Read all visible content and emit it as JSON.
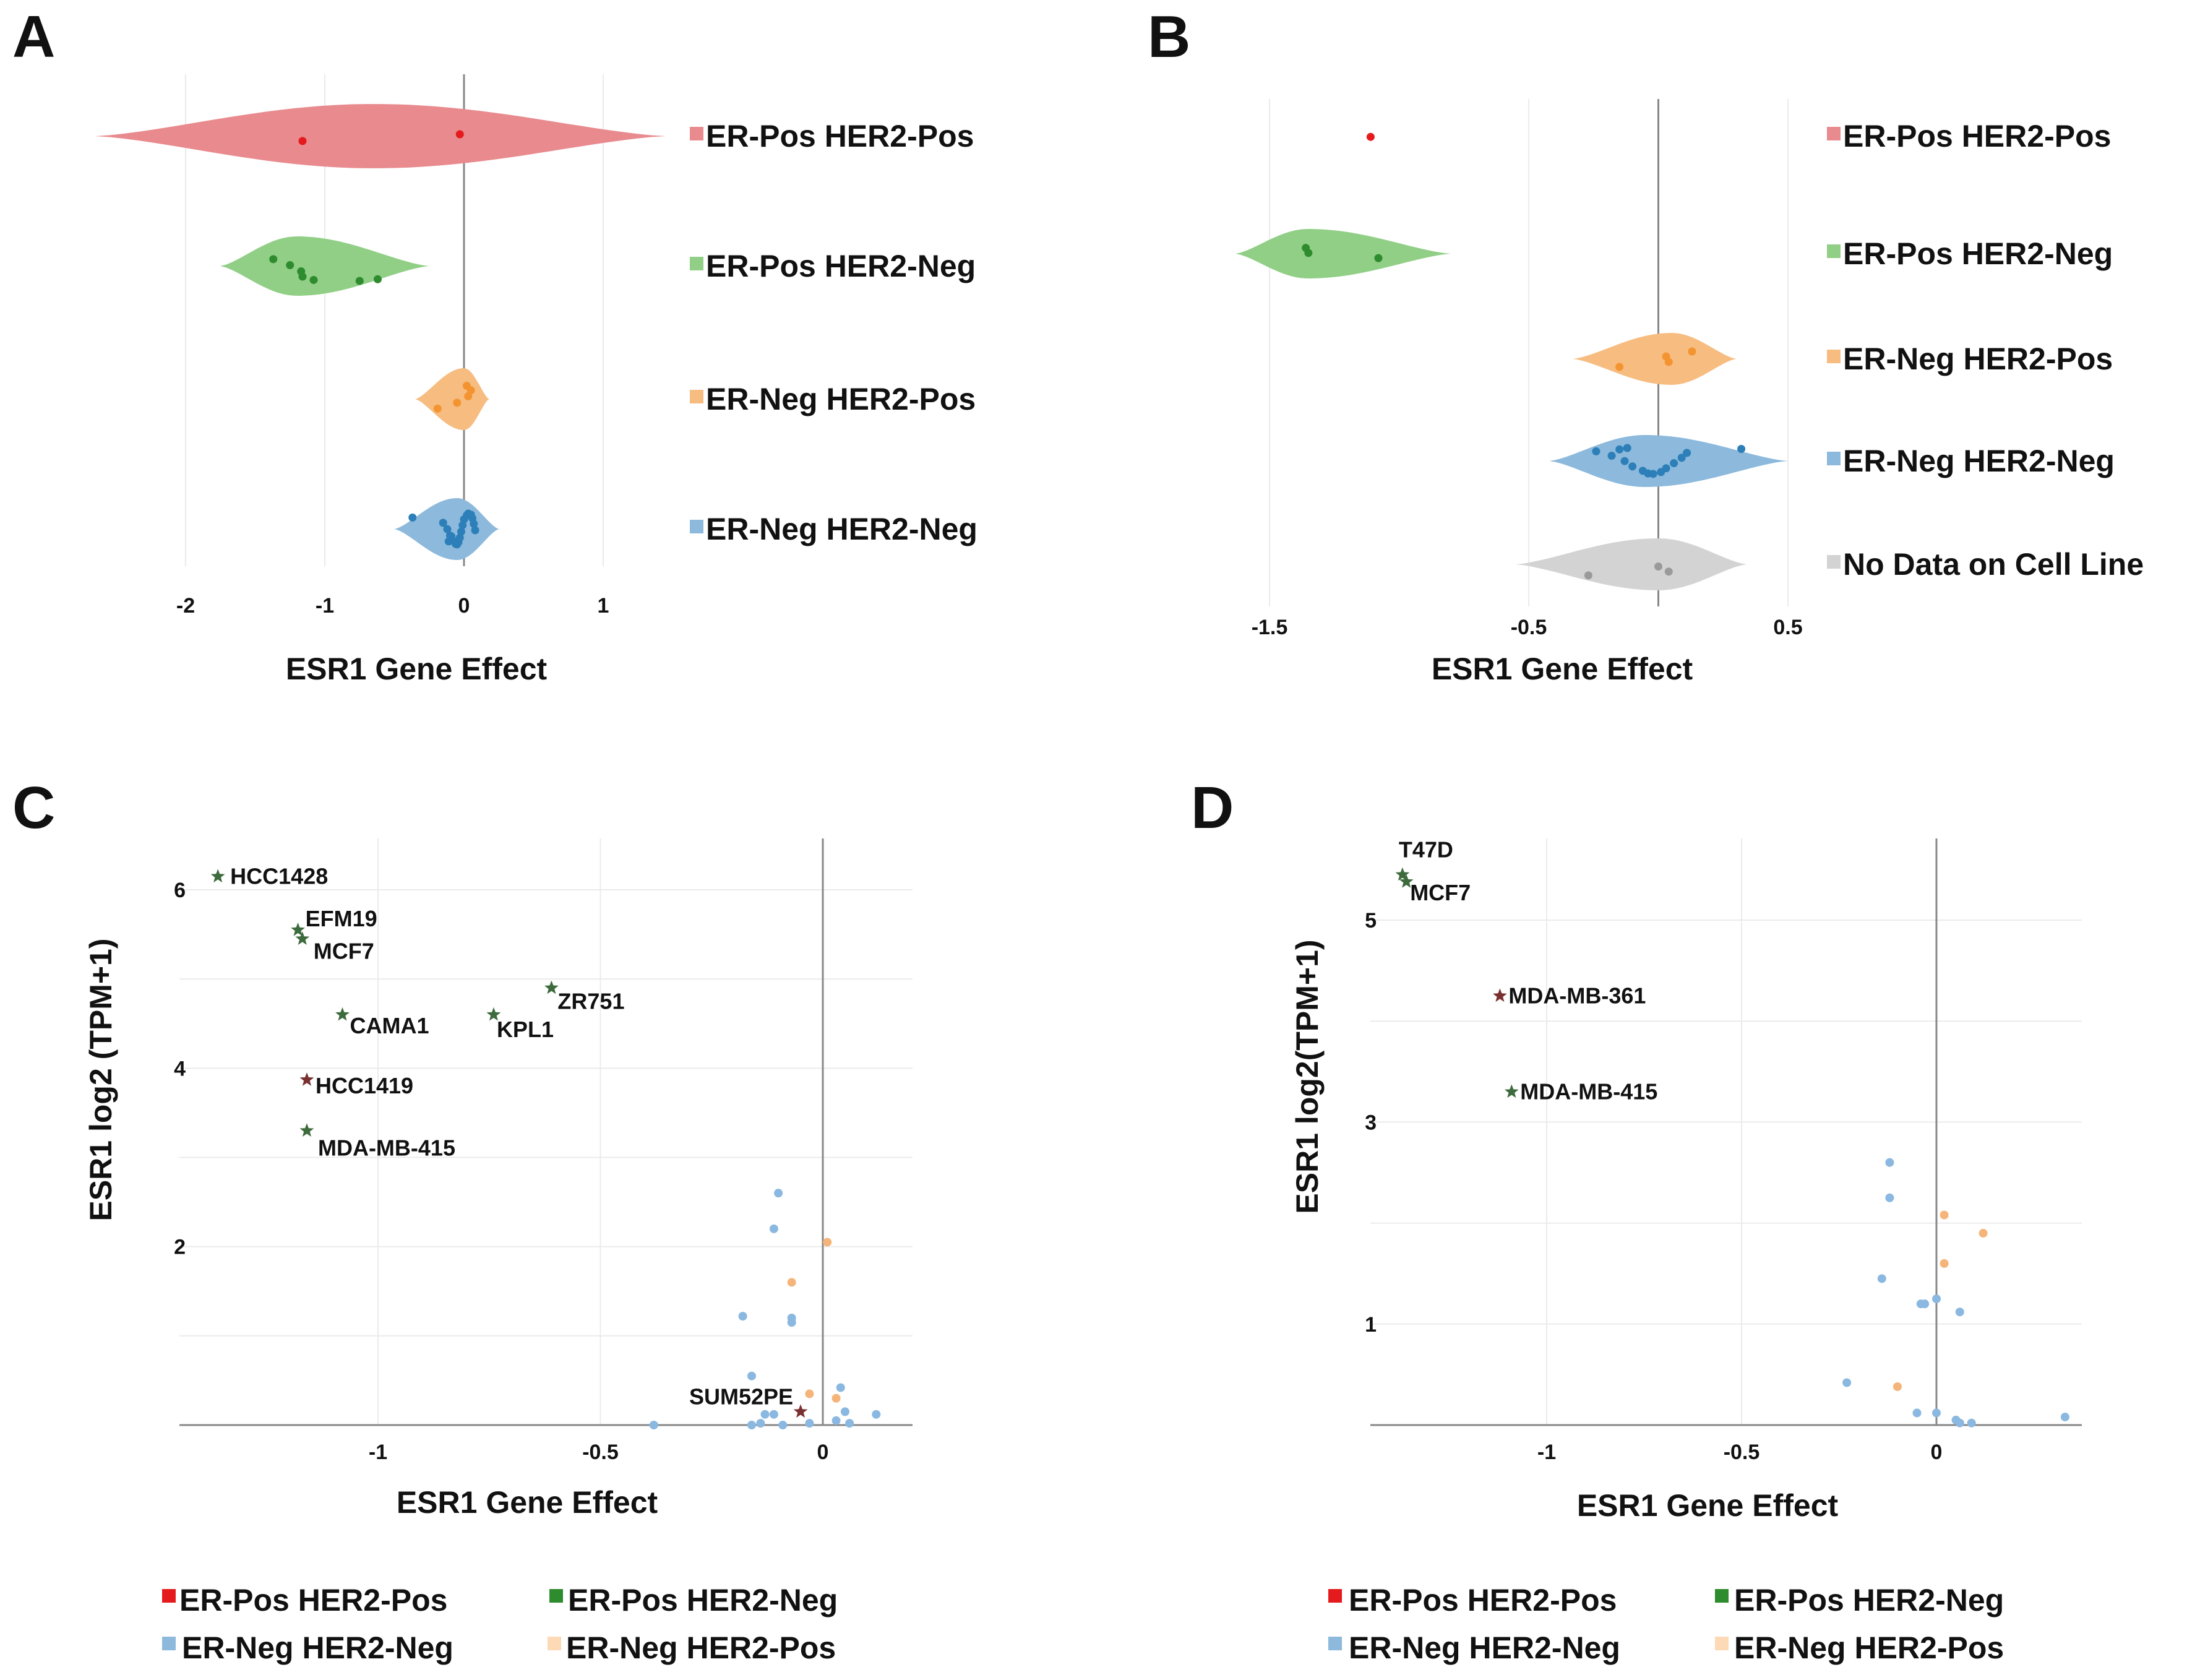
{
  "colors": {
    "er_pos_her2_pos": "#e41a1c",
    "er_pos_her2_neg": "#2e8b2e",
    "er_neg_her2_pos": "#f39431",
    "er_neg_her2_neg": "#2c7fb8",
    "no_data": "#9a9a9a",
    "violin_pos_pos": "#e88a8e",
    "violin_pos_neg": "#90cf85",
    "violin_neg_pos": "#f7bc80",
    "violin_neg_neg": "#8cb9dc",
    "violin_no_data": "#d3d3d3",
    "star_green": "#3d6b3d",
    "star_maroon": "#7a3030",
    "scatter_blue": "#8ab8e0",
    "scatter_orange": "#f5b47a",
    "legend_neg_pos_light": "#fdd9b5"
  },
  "chart_data": [
    {
      "panel": "A",
      "type": "violin",
      "xlabel": "ESR1 Gene Effect",
      "xlim": [
        -2.2,
        1.45
      ],
      "xticks": [
        -2,
        -1,
        0,
        1
      ],
      "xtick_labels": [
        "-2",
        "-1",
        "0",
        "1"
      ],
      "groups": [
        {
          "name": "ER-Pos HER2-Pos",
          "key": "pos_pos",
          "range": [
            -2.65,
            1.45
          ],
          "mode": -0.65,
          "points": [
            -1.16,
            -0.03
          ]
        },
        {
          "name": "ER-Pos HER2-Neg",
          "key": "pos_neg",
          "range": [
            -1.75,
            -0.25
          ],
          "mode": -1.2,
          "points": [
            -1.37,
            -1.25,
            -1.17,
            -1.16,
            -1.08,
            -0.75,
            -0.62
          ]
        },
        {
          "name": "ER-Neg HER2-Pos",
          "key": "neg_pos",
          "range": [
            -0.35,
            0.18
          ],
          "mode": 0.0,
          "points": [
            -0.19,
            -0.05,
            0.03,
            0.05,
            0.02
          ]
        },
        {
          "name": "ER-Neg HER2-Neg",
          "key": "neg_neg",
          "range": [
            -0.5,
            0.25
          ],
          "mode": -0.05,
          "points": [
            -0.37,
            -0.15,
            -0.12,
            -0.1,
            -0.08,
            -0.06,
            -0.05,
            -0.04,
            -0.03,
            -0.02,
            -0.01,
            0.0,
            0.02,
            0.03,
            0.05,
            0.06,
            0.07,
            0.08,
            -0.09,
            -0.11
          ]
        }
      ]
    },
    {
      "panel": "B",
      "type": "violin",
      "xlabel": "ESR1 Gene Effect",
      "xlim": [
        -1.62,
        0.5
      ],
      "xticks": [
        -1.5,
        -0.5,
        0.5
      ],
      "xtick_labels": [
        "-1.5",
        "-0.5",
        "0.5"
      ],
      "groups": [
        {
          "name": "ER-Pos HER2-Pos",
          "key": "pos_pos",
          "range": null,
          "mode": null,
          "points": [
            -1.11
          ]
        },
        {
          "name": "ER-Pos HER2-Neg",
          "key": "pos_neg",
          "range": [
            -1.63,
            -0.8
          ],
          "mode": -1.35,
          "points": [
            -1.36,
            -1.35,
            -1.08
          ]
        },
        {
          "name": "ER-Neg HER2-Pos",
          "key": "neg_pos",
          "range": [
            -0.33,
            0.3
          ],
          "mode": 0.05,
          "points": [
            -0.15,
            0.04,
            0.03,
            0.13
          ]
        },
        {
          "name": "ER-Neg HER2-Neg",
          "key": "neg_neg",
          "range": [
            -0.42,
            0.5
          ],
          "mode": -0.05,
          "points": [
            -0.24,
            -0.18,
            -0.13,
            -0.1,
            -0.06,
            -0.04,
            -0.02,
            0.01,
            0.03,
            0.06,
            0.09,
            0.11,
            -0.15,
            -0.12,
            0.32
          ]
        },
        {
          "name": "No Data on Cell Line",
          "key": "no_data",
          "range": [
            -0.55,
            0.34
          ],
          "mode": 0.0,
          "points": [
            -0.27,
            0.04,
            0.0
          ]
        }
      ]
    },
    {
      "panel": "C",
      "type": "scatter",
      "xlabel": "ESR1 Gene Effect",
      "ylabel": "ESR1 log2 (TPM+1)",
      "xlim": [
        -1.43,
        0.2
      ],
      "ylim": [
        0,
        6.2
      ],
      "xticks": [
        -1,
        -0.5,
        0
      ],
      "xtick_labels": [
        "-1",
        "-0.5",
        "0"
      ],
      "yticks": [
        2,
        4,
        6
      ],
      "ytick_labels": [
        "2",
        "4",
        "6"
      ],
      "labeled": [
        {
          "label": "HCC1428",
          "x": -1.36,
          "y": 6.15,
          "color": "star_green"
        },
        {
          "label": "EFM19",
          "x": -1.18,
          "y": 5.55,
          "color": "star_green"
        },
        {
          "label": "MCF7",
          "x": -1.17,
          "y": 5.45,
          "color": "star_green"
        },
        {
          "label": "CAMA1",
          "x": -1.08,
          "y": 4.6,
          "color": "star_green"
        },
        {
          "label": "ZR751",
          "x": -0.61,
          "y": 4.9,
          "color": "star_green"
        },
        {
          "label": "KPL1",
          "x": -0.74,
          "y": 4.6,
          "color": "star_green"
        },
        {
          "label": "HCC1419",
          "x": -1.16,
          "y": 3.87,
          "color": "star_maroon"
        },
        {
          "label": "MDA-MB-415",
          "x": -1.16,
          "y": 3.3,
          "color": "star_green"
        },
        {
          "label": "SUM52PE",
          "x": -0.05,
          "y": 0.15,
          "color": "star_maroon"
        }
      ],
      "unlabeled": [
        {
          "x": -0.1,
          "y": 2.6,
          "color": "scatter_blue"
        },
        {
          "x": -0.11,
          "y": 2.2,
          "color": "scatter_blue"
        },
        {
          "x": -0.18,
          "y": 1.22,
          "color": "scatter_blue"
        },
        {
          "x": -0.07,
          "y": 1.2,
          "color": "scatter_blue"
        },
        {
          "x": -0.07,
          "y": 1.15,
          "color": "scatter_blue"
        },
        {
          "x": -0.16,
          "y": 0.55,
          "color": "scatter_blue"
        },
        {
          "x": -0.13,
          "y": 0.12,
          "color": "scatter_blue"
        },
        {
          "x": -0.11,
          "y": 0.12,
          "color": "scatter_blue"
        },
        {
          "x": -0.38,
          "y": 0.0,
          "color": "scatter_blue"
        },
        {
          "x": -0.16,
          "y": 0.0,
          "color": "scatter_blue"
        },
        {
          "x": -0.14,
          "y": 0.02,
          "color": "scatter_blue"
        },
        {
          "x": -0.09,
          "y": 0.0,
          "color": "scatter_blue"
        },
        {
          "x": -0.03,
          "y": 0.02,
          "color": "scatter_blue"
        },
        {
          "x": 0.03,
          "y": 0.05,
          "color": "scatter_blue"
        },
        {
          "x": 0.04,
          "y": 0.42,
          "color": "scatter_blue"
        },
        {
          "x": 0.05,
          "y": 0.15,
          "color": "scatter_blue"
        },
        {
          "x": 0.06,
          "y": 0.02,
          "color": "scatter_blue"
        },
        {
          "x": 0.12,
          "y": 0.12,
          "color": "scatter_blue"
        },
        {
          "x": 0.01,
          "y": 2.05,
          "color": "scatter_orange"
        },
        {
          "x": -0.07,
          "y": 1.6,
          "color": "scatter_orange"
        },
        {
          "x": -0.03,
          "y": 0.35,
          "color": "scatter_orange"
        },
        {
          "x": 0.03,
          "y": 0.3,
          "color": "scatter_orange"
        }
      ]
    },
    {
      "panel": "D",
      "type": "scatter",
      "xlabel": "ESR1 Gene Effect",
      "ylabel": "ESR1 log2(TPM+1)",
      "xlim": [
        -1.45,
        0.37
      ],
      "ylim": [
        0,
        5.5
      ],
      "xticks": [
        -1,
        -0.5,
        0
      ],
      "xtick_labels": [
        "-1",
        "-0.5",
        "0"
      ],
      "yticks": [
        1,
        3,
        5
      ],
      "ytick_labels": [
        "1",
        "3",
        "5"
      ],
      "labeled": [
        {
          "label": "T47D",
          "x": -1.37,
          "y": 5.45,
          "color": "star_green"
        },
        {
          "label": "MCF7",
          "x": -1.36,
          "y": 5.38,
          "color": "star_green"
        },
        {
          "label": "MDA-MB-361",
          "x": -1.12,
          "y": 4.25,
          "color": "star_maroon"
        },
        {
          "label": "MDA-MB-415",
          "x": -1.09,
          "y": 3.3,
          "color": "star_green"
        }
      ],
      "unlabeled": [
        {
          "x": -0.12,
          "y": 2.6,
          "color": "scatter_blue"
        },
        {
          "x": -0.12,
          "y": 2.25,
          "color": "scatter_blue"
        },
        {
          "x": -0.14,
          "y": 1.45,
          "color": "scatter_blue"
        },
        {
          "x": -0.04,
          "y": 1.2,
          "color": "scatter_blue"
        },
        {
          "x": -0.03,
          "y": 1.2,
          "color": "scatter_blue"
        },
        {
          "x": 0.0,
          "y": 1.25,
          "color": "scatter_blue"
        },
        {
          "x": 0.06,
          "y": 1.12,
          "color": "scatter_blue"
        },
        {
          "x": -0.23,
          "y": 0.42,
          "color": "scatter_blue"
        },
        {
          "x": -0.05,
          "y": 0.12,
          "color": "scatter_blue"
        },
        {
          "x": 0.0,
          "y": 0.12,
          "color": "scatter_blue"
        },
        {
          "x": 0.05,
          "y": 0.05,
          "color": "scatter_blue"
        },
        {
          "x": 0.06,
          "y": 0.02,
          "color": "scatter_blue"
        },
        {
          "x": 0.09,
          "y": 0.02,
          "color": "scatter_blue"
        },
        {
          "x": 0.33,
          "y": 0.08,
          "color": "scatter_blue"
        },
        {
          "x": 0.02,
          "y": 2.08,
          "color": "scatter_orange"
        },
        {
          "x": 0.12,
          "y": 1.9,
          "color": "scatter_orange"
        },
        {
          "x": 0.02,
          "y": 1.6,
          "color": "scatter_orange"
        },
        {
          "x": -0.1,
          "y": 0.38,
          "color": "scatter_orange"
        }
      ]
    }
  ],
  "panels": {
    "A": {
      "letter": "A"
    },
    "B": {
      "letter": "B"
    },
    "C": {
      "letter": "C"
    },
    "D": {
      "letter": "D"
    }
  },
  "bottom_legend": {
    "pos_pos": "ER-Pos HER2-Pos",
    "pos_neg": "ER-Pos HER2-Neg",
    "neg_neg": "ER-Neg HER2-Neg",
    "neg_pos": "ER-Neg HER2-Pos"
  }
}
